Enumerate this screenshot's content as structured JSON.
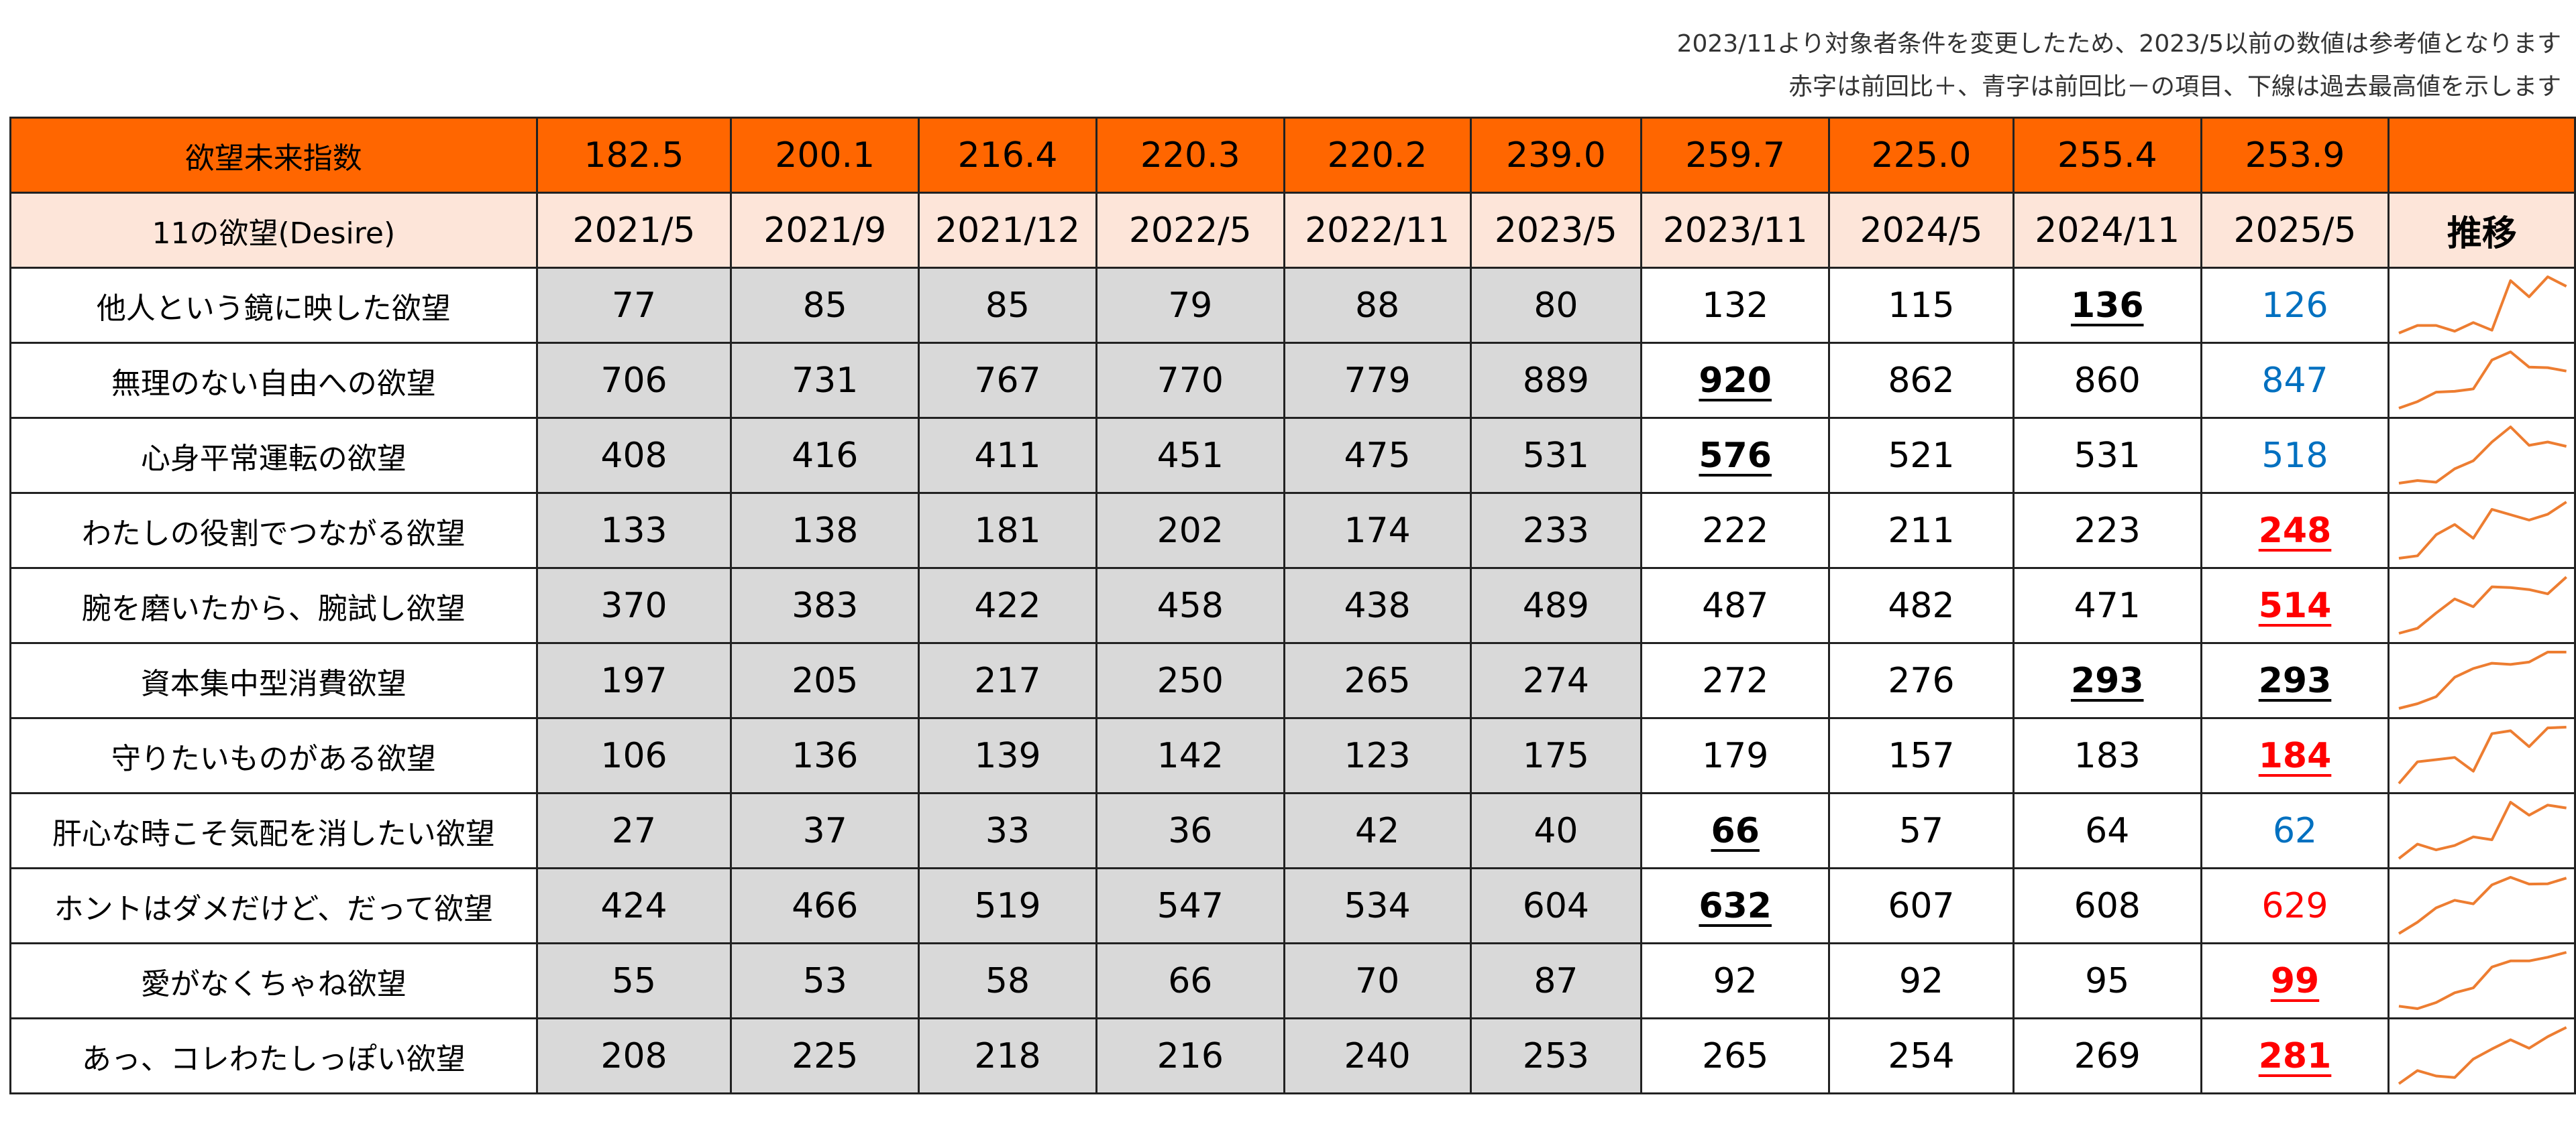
{
  "notes": [
    "2023/11より対象者条件を変更したため、2023/5以前の数値は参考値となります",
    "赤字は前回比＋、青字は前回比－の項目、下線は過去最高値を示します"
  ],
  "chart_data": {
    "type": "table",
    "index_label": "欲望未来指数",
    "index_values": [
      "182.5",
      "200.1",
      "216.4",
      "220.3",
      "220.2",
      "239.0",
      "259.7",
      "225.0",
      "255.4",
      "253.9"
    ],
    "header_label": "11の欲望(Desire)",
    "periods": [
      "2021/5",
      "2021/9",
      "2021/12",
      "2022/5",
      "2022/11",
      "2023/5",
      "2023/11",
      "2024/5",
      "2024/11",
      "2025/5"
    ],
    "trend_label": "推移",
    "trend_color": "#ed7d31",
    "old_period_count": 6,
    "colors": {
      "header_bg": "#ff6600",
      "date_row_bg": "#fde5d9",
      "old_bg": "#d9d9d9",
      "up": "#ff0000",
      "down": "#0070c0"
    },
    "rows": [
      {
        "label": "他人という鏡に映した欲望",
        "values": [
          77,
          85,
          85,
          79,
          88,
          80,
          132,
          115,
          136,
          126
        ],
        "max_index": 8,
        "change": "down"
      },
      {
        "label": "無理のない自由への欲望",
        "values": [
          706,
          731,
          767,
          770,
          779,
          889,
          920,
          862,
          860,
          847
        ],
        "max_index": 6,
        "change": "down"
      },
      {
        "label": "心身平常運転の欲望",
        "values": [
          408,
          416,
          411,
          451,
          475,
          531,
          576,
          521,
          531,
          518
        ],
        "max_index": 6,
        "change": "down"
      },
      {
        "label": "わたしの役割でつながる欲望",
        "values": [
          133,
          138,
          181,
          202,
          174,
          233,
          222,
          211,
          223,
          248
        ],
        "max_index": 9,
        "change": "up"
      },
      {
        "label": "腕を磨いたから、腕試し欲望",
        "values": [
          370,
          383,
          422,
          458,
          438,
          489,
          487,
          482,
          471,
          514
        ],
        "max_index": 9,
        "change": "up"
      },
      {
        "label": "資本集中型消費欲望",
        "values": [
          197,
          205,
          217,
          250,
          265,
          274,
          272,
          276,
          293,
          293
        ],
        "max_index": [
          8,
          9
        ],
        "change": "same"
      },
      {
        "label": "守りたいものがある欲望",
        "values": [
          106,
          136,
          139,
          142,
          123,
          175,
          179,
          157,
          183,
          184
        ],
        "max_index": 9,
        "change": "up"
      },
      {
        "label": "肝心な時こそ気配を消したい欲望",
        "values": [
          27,
          37,
          33,
          36,
          42,
          40,
          66,
          57,
          64,
          62
        ],
        "max_index": 6,
        "change": "down"
      },
      {
        "label": "ホントはダメだけど、だって欲望",
        "values": [
          424,
          466,
          519,
          547,
          534,
          604,
          632,
          607,
          608,
          629
        ],
        "max_index": 6,
        "change": "up"
      },
      {
        "label": "愛がなくちゃね欲望",
        "values": [
          55,
          53,
          58,
          66,
          70,
          87,
          92,
          92,
          95,
          99
        ],
        "max_index": 9,
        "change": "up"
      },
      {
        "label": "あっ、コレわたしっぽい欲望",
        "values": [
          208,
          225,
          218,
          216,
          240,
          253,
          265,
          254,
          269,
          281
        ],
        "max_index": 9,
        "change": "up"
      }
    ]
  }
}
